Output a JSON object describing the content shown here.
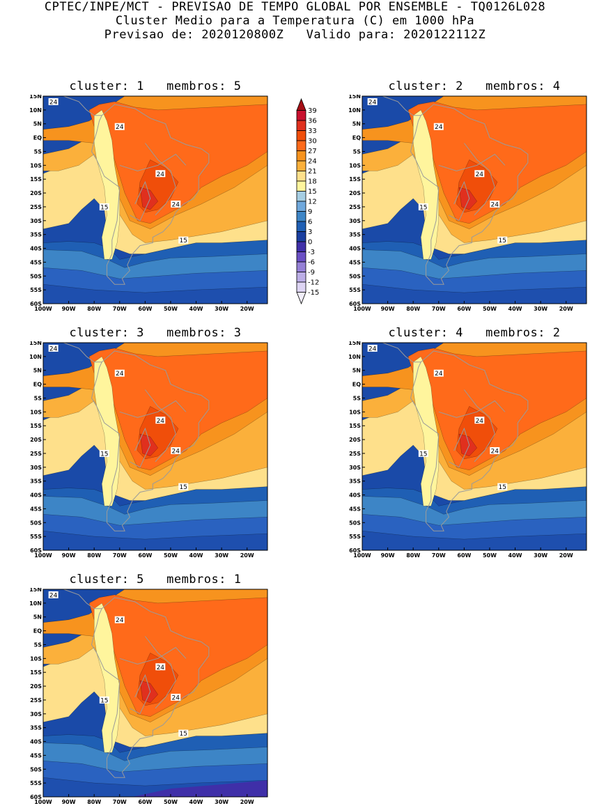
{
  "header": {
    "line1": "CPTEC/INPE/MCT - PREVISAO DE TEMPO GLOBAL POR ENSEMBLE - TQ0126L028",
    "line2": "Cluster Medio para a Temperatura (C) em 1000 hPa",
    "line3": "Previsao de: 2020120800Z   Valido para: 2020122112Z"
  },
  "panels": [
    {
      "title": "cluster: 1   membros: 5"
    },
    {
      "title": "cluster: 2   membros: 4"
    },
    {
      "title": "cluster: 3   membros: 3"
    },
    {
      "title": "cluster: 4   membros: 2"
    },
    {
      "title": "cluster: 5   membros: 1"
    }
  ],
  "axes": {
    "lat_labels": [
      "15N",
      "10N",
      "5N",
      "EQ",
      "5S",
      "10S",
      "15S",
      "20S",
      "25S",
      "30S",
      "35S",
      "40S",
      "45S",
      "50S",
      "55S",
      "60S"
    ],
    "lon_labels": [
      "100W",
      "90W",
      "80W",
      "70W",
      "60W",
      "50W",
      "40W",
      "30W",
      "20W"
    ]
  },
  "contour_labels": {
    "warm": "24",
    "cool": "15"
  },
  "colorbar": {
    "labels": [
      "39",
      "36",
      "33",
      "30",
      "27",
      "24",
      "21",
      "18",
      "15",
      "12",
      "9",
      "6",
      "3",
      "0",
      "-3",
      "-6",
      "-9",
      "-12",
      "-15"
    ],
    "colors": [
      "#a50f15",
      "#c8102e",
      "#e0301e",
      "#f04e0a",
      "#ff6a1a",
      "#f7931e",
      "#fbb03b",
      "#fee08b",
      "#fff59d",
      "#a6cee3",
      "#6fa8dc",
      "#3d85c6",
      "#1f5fb4",
      "#1a3fa0",
      "#3f2fa8",
      "#6a4fc4",
      "#9580d6",
      "#bcaee6",
      "#ddd4f3",
      "#f1eefa"
    ]
  }
}
